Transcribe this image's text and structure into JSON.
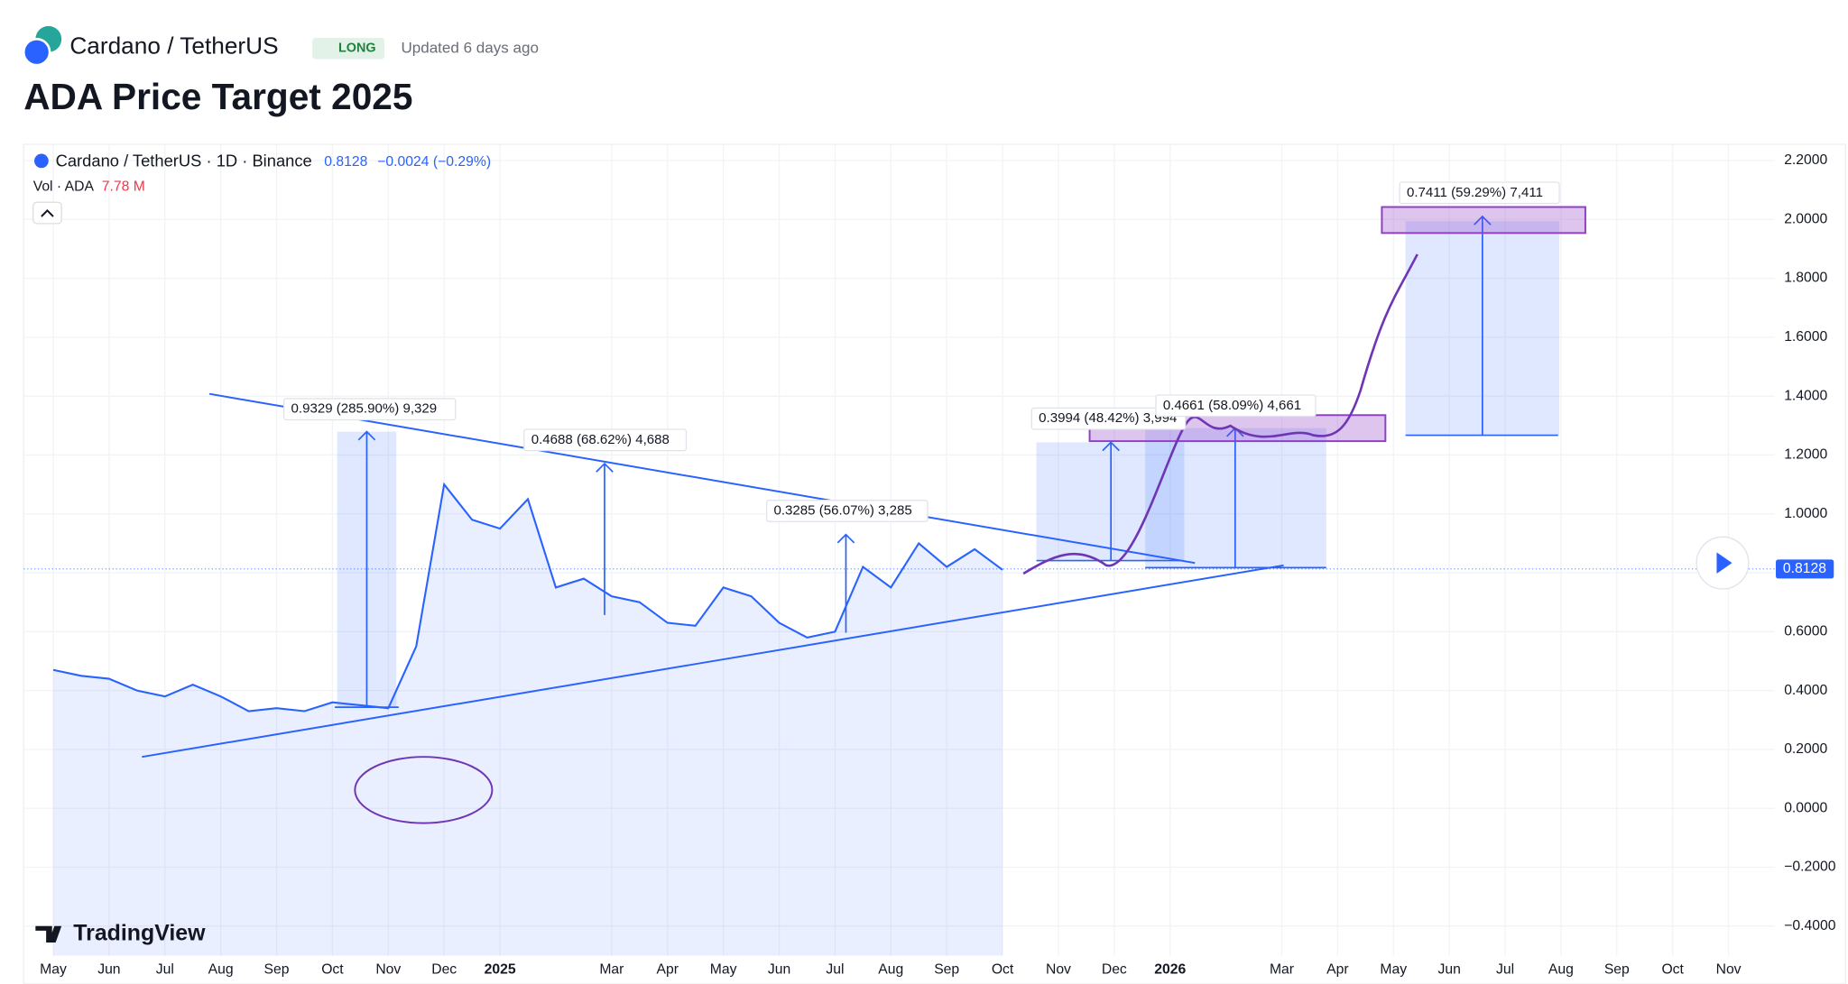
{
  "header": {
    "symbol": "Cardano / TetherUS",
    "badge": "LONG",
    "updated": "Updated 6 days ago",
    "title": "ADA Price Target 2025"
  },
  "chart_data": {
    "type": "line",
    "symbol_info": "Cardano / TetherUS · 1D · Binance",
    "last_price": 0.8128,
    "change": "−0.0024 (−0.29%)",
    "vol_label": "Vol · ADA",
    "vol_value": "7.78 M",
    "watermark": "TradingView",
    "categories": [
      "May",
      null,
      "Jun",
      null,
      "Jul",
      null,
      "Aug",
      null,
      "Sep",
      null,
      "Oct",
      null,
      "Nov",
      null,
      "Dec",
      null,
      "2025",
      null,
      null,
      null,
      "Mar",
      null,
      "Apr",
      null,
      "May",
      null,
      "Jun",
      null,
      "Jul",
      null,
      "Aug",
      null,
      "Sep",
      null,
      "Oct",
      null,
      "Nov",
      null,
      "Dec",
      null,
      "2026",
      null,
      null,
      null,
      "Mar",
      null,
      "Apr",
      null,
      "May",
      null,
      "Jun",
      null,
      "Jul",
      null,
      "Aug",
      null,
      "Sep",
      null,
      "Oct",
      null,
      "Nov"
    ],
    "series": [
      {
        "color": "#2962ff",
        "values": [
          0.47,
          0.45,
          0.44,
          0.4,
          0.38,
          0.42,
          0.38,
          0.33,
          0.34,
          0.33,
          0.36,
          0.35,
          0.34,
          0.55,
          1.1,
          0.98,
          0.95,
          1.05,
          0.75,
          0.78,
          0.72,
          0.7,
          0.63,
          0.62,
          0.75,
          0.72,
          0.63,
          0.58,
          0.6,
          0.82,
          0.75,
          0.9,
          0.82,
          0.88,
          0.81,
          null,
          null,
          null,
          null,
          null,
          null,
          null,
          null,
          null,
          null,
          null,
          null,
          null,
          null,
          null,
          null,
          null,
          null,
          null,
          null,
          null,
          null,
          null,
          null,
          null,
          null
        ]
      }
    ],
    "ylim": [
      -0.5,
      2.255
    ],
    "yticks": [
      {
        "value": 2.2,
        "label": "2.2000"
      },
      {
        "value": 2.0,
        "label": "2.0000"
      },
      {
        "value": 1.8,
        "label": "1.8000"
      },
      {
        "value": 1.6,
        "label": "1.6000"
      },
      {
        "value": 1.4,
        "label": "1.4000"
      },
      {
        "value": 1.2,
        "label": "1.2000"
      },
      {
        "value": 1.0,
        "label": "1.0000"
      },
      {
        "value": 0.8,
        "label": "0.8000"
      },
      {
        "value": 0.6,
        "label": "0.6000"
      },
      {
        "value": 0.4,
        "label": "0.4000"
      },
      {
        "value": 0.2,
        "label": "0.2000"
      },
      {
        "value": 0,
        "label": "0.0000"
      },
      {
        "value": -0.2,
        "label": "−0.2000"
      },
      {
        "value": -0.4,
        "label": "−0.4000"
      }
    ],
    "annotations": [
      "0.9329 (285.90%) 9,329",
      "0.4688 (68.62%) 4,688",
      "0.3285 (56.07%) 3,285",
      "0.3994 (48.42%) 3,994",
      "0.4661 (58.09%) 4,661",
      "0.7411 (59.29%) 7,411"
    ],
    "grid": true
  }
}
